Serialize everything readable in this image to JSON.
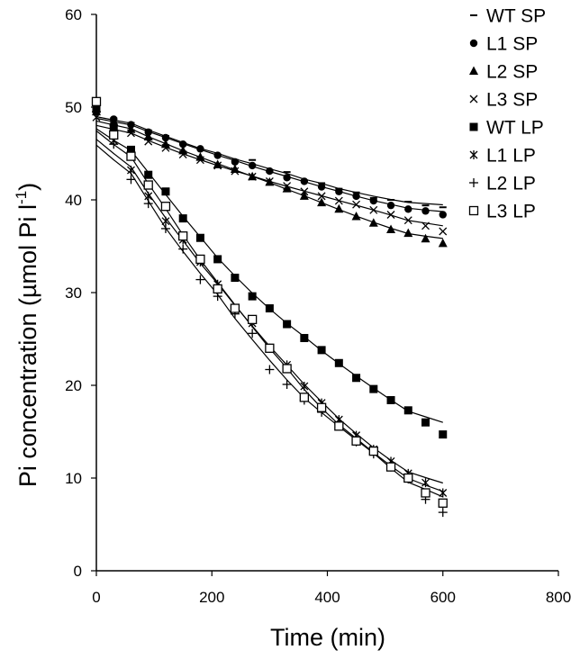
{
  "chart_data": {
    "type": "scatter",
    "title": "",
    "xlabel": "Time (min)",
    "ylabel": "Pi concentration (µmol Pi l",
    "ylabel_superscript": "-1",
    "ylabel_close": ")",
    "xlim": [
      0,
      800
    ],
    "ylim": [
      0,
      60
    ],
    "xticks": [
      0,
      200,
      400,
      600,
      800
    ],
    "yticks": [
      0,
      10,
      20,
      30,
      40,
      50,
      60
    ],
    "grid": false,
    "legend_position": "right",
    "series": [
      {
        "name": "WT SP",
        "marker": "dash",
        "x": [
          0,
          30,
          60,
          90,
          120,
          150,
          180,
          210,
          240,
          270,
          300,
          330,
          360,
          390,
          420,
          450,
          480,
          510,
          540,
          570,
          600
        ],
        "y": [
          49.8,
          48.8,
          48.3,
          47.5,
          46.9,
          46.1,
          45.5,
          44.9,
          44.3,
          44.3,
          43.0,
          43.0,
          42.1,
          41.8,
          41.2,
          40.8,
          40.2,
          40.0,
          39.8,
          39.4,
          39.2
        ]
      },
      {
        "name": "L1 SP",
        "marker": "circle",
        "x": [
          0,
          30,
          60,
          90,
          120,
          150,
          180,
          210,
          240,
          270,
          300,
          330,
          360,
          390,
          420,
          450,
          480,
          510,
          540,
          570,
          600
        ],
        "y": [
          49.6,
          48.7,
          48.1,
          47.3,
          46.7,
          46.0,
          45.5,
          44.8,
          44.1,
          43.7,
          43.1,
          42.4,
          42.0,
          41.4,
          40.9,
          40.4,
          39.9,
          39.4,
          39.0,
          38.8,
          38.4
        ]
      },
      {
        "name": "L2 SP",
        "marker": "triangle",
        "x": [
          0,
          30,
          60,
          90,
          120,
          150,
          180,
          210,
          240,
          270,
          300,
          330,
          360,
          390,
          420,
          450,
          480,
          510,
          540,
          570,
          600
        ],
        "y": [
          49.5,
          48.4,
          47.6,
          46.8,
          46.0,
          45.3,
          44.6,
          43.8,
          43.3,
          42.5,
          41.9,
          41.2,
          40.4,
          39.7,
          39.0,
          38.2,
          37.5,
          36.8,
          36.4,
          35.8,
          35.3
        ]
      },
      {
        "name": "L3 SP",
        "marker": "x",
        "x": [
          0,
          30,
          60,
          90,
          120,
          150,
          180,
          210,
          240,
          270,
          300,
          330,
          360,
          390,
          420,
          450,
          480,
          510,
          540,
          570,
          600
        ],
        "y": [
          48.9,
          48.0,
          47.2,
          46.3,
          45.6,
          44.9,
          44.3,
          43.7,
          43.1,
          42.5,
          42.0,
          41.5,
          40.9,
          40.4,
          39.9,
          39.5,
          38.9,
          38.4,
          37.8,
          37.2,
          36.6
        ]
      },
      {
        "name": "WT LP",
        "marker": "square",
        "x": [
          0,
          30,
          60,
          90,
          120,
          150,
          180,
          210,
          240,
          270,
          300,
          330,
          360,
          390,
          420,
          450,
          480,
          510,
          540,
          570,
          600
        ],
        "y": [
          49.8,
          47.8,
          45.4,
          42.7,
          40.9,
          38.0,
          35.9,
          33.6,
          31.6,
          29.6,
          28.3,
          26.6,
          25.1,
          23.8,
          22.4,
          20.8,
          19.6,
          18.4,
          17.3,
          16.0,
          14.7
        ]
      },
      {
        "name": "L1 LP",
        "marker": "asterisk",
        "x": [
          0,
          30,
          60,
          90,
          120,
          150,
          180,
          210,
          240,
          270,
          300,
          330,
          360,
          390,
          420,
          450,
          480,
          510,
          540,
          570,
          600
        ],
        "y": [
          50.0,
          46.4,
          43.2,
          40.4,
          37.7,
          35.7,
          33.3,
          30.9,
          28.2,
          26.7,
          24.0,
          22.2,
          19.9,
          18.1,
          16.3,
          14.6,
          13.1,
          11.8,
          10.5,
          9.5,
          8.4
        ]
      },
      {
        "name": "L2 LP",
        "marker": "plus",
        "x": [
          0,
          30,
          60,
          90,
          120,
          150,
          180,
          210,
          240,
          270,
          300,
          330,
          360,
          390,
          420,
          450,
          480,
          510,
          540,
          570,
          600
        ],
        "y": [
          49.5,
          46.0,
          42.2,
          39.6,
          36.9,
          34.7,
          31.4,
          29.6,
          27.7,
          25.6,
          21.7,
          20.1,
          18.4,
          17.1,
          15.8,
          13.9,
          12.6,
          11.2,
          9.9,
          7.7,
          6.3
        ]
      },
      {
        "name": "L3 LP",
        "marker": "open-square",
        "x": [
          0,
          30,
          60,
          90,
          120,
          150,
          180,
          210,
          240,
          270,
          300,
          330,
          360,
          390,
          420,
          450,
          480,
          510,
          540,
          570,
          600
        ],
        "y": [
          50.6,
          47.0,
          44.7,
          41.6,
          39.3,
          36.1,
          33.6,
          30.4,
          28.3,
          27.1,
          24.0,
          21.8,
          18.7,
          17.6,
          15.6,
          14.0,
          12.9,
          11.2,
          10.0,
          8.4,
          7.3
        ]
      }
    ]
  }
}
